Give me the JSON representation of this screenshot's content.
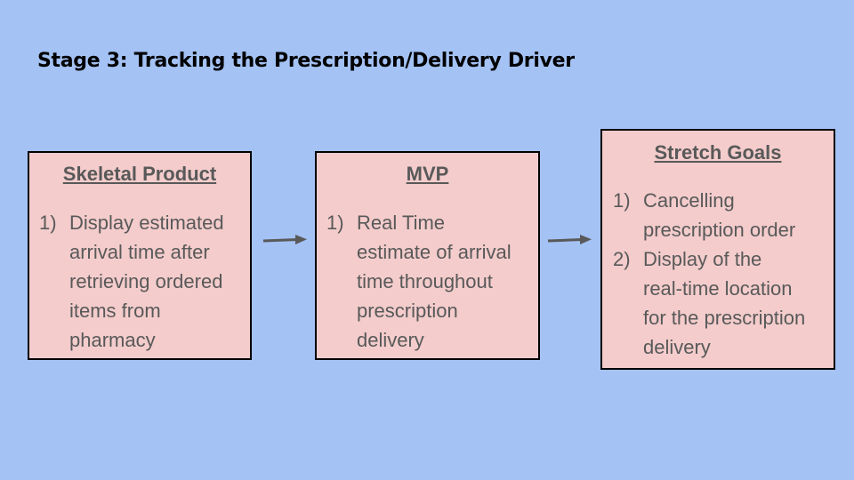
{
  "title": "Stage 3: Tracking the Prescription/Delivery Driver",
  "boxes": [
    {
      "heading": "Skeletal Product",
      "items": [
        {
          "num": "1)",
          "lines": [
            "Display estimated",
            "arrival time after",
            "retrieving ordered",
            "items from",
            "pharmacy"
          ]
        }
      ]
    },
    {
      "heading": "MVP",
      "items": [
        {
          "num": "1)",
          "lines": [
            "Real Time",
            "estimate of arrival",
            "time throughout",
            "prescription",
            "delivery"
          ]
        }
      ]
    },
    {
      "heading": "Stretch Goals",
      "items": [
        {
          "num": "1)",
          "lines": [
            "Cancelling",
            "prescription order"
          ]
        },
        {
          "num": "2)",
          "lines": [
            "Display of the",
            "real-time location",
            "for the prescription",
            "delivery"
          ]
        }
      ]
    }
  ]
}
